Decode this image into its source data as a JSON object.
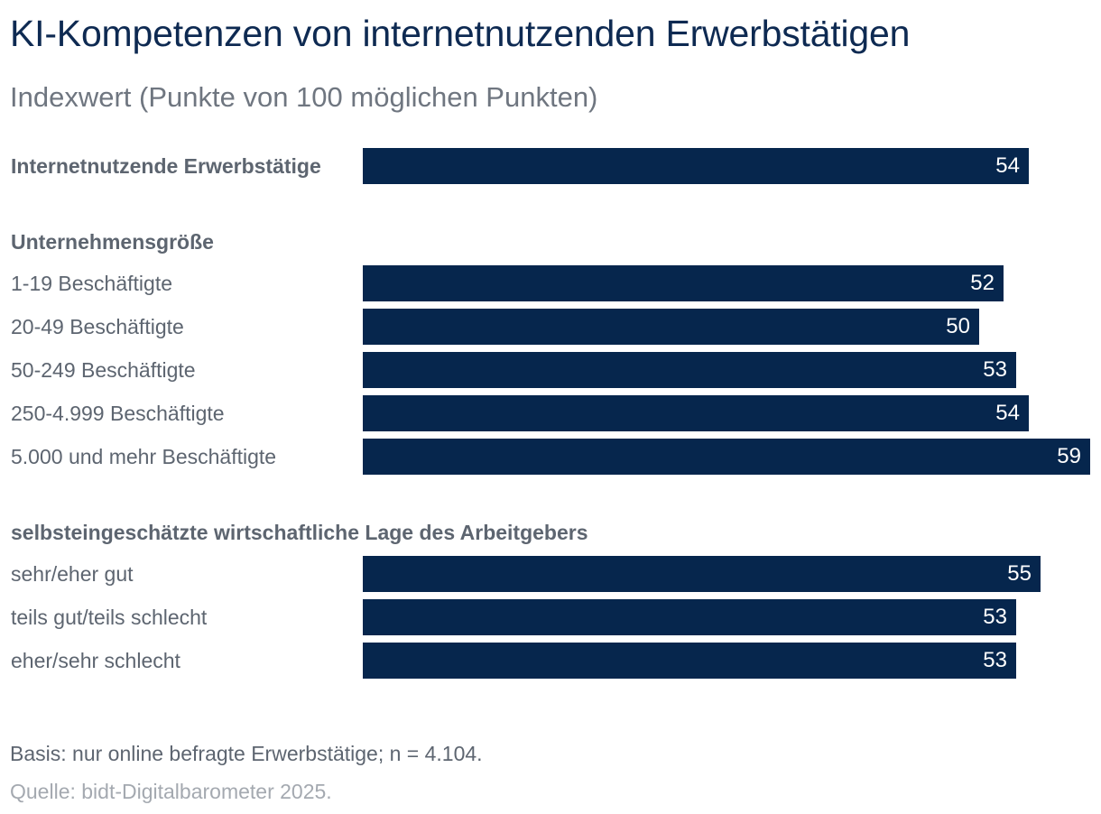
{
  "chart_data": {
    "type": "bar",
    "orientation": "horizontal",
    "title": "KI-Kompetenzen von internetnutzenden Erwerbstätigen",
    "subtitle": "Indexwert (Punkte von 100 möglichen Punkten)",
    "xlim": [
      0,
      59
    ],
    "bar_color": "#06264d",
    "groups": [
      {
        "header": "",
        "rows": [
          {
            "label": "Internetnutzende Erwerbstätige",
            "value": 54,
            "emphasis": true
          }
        ]
      },
      {
        "header": "Unternehmensgröße",
        "rows": [
          {
            "label": "1-19 Beschäftigte",
            "value": 52
          },
          {
            "label": "20-49 Beschäftigte",
            "value": 50
          },
          {
            "label": "50-249 Beschäftigte",
            "value": 53
          },
          {
            "label": "250-4.999 Beschäftigte",
            "value": 54
          },
          {
            "label": "5.000 und mehr Beschäftigte",
            "value": 59
          }
        ]
      },
      {
        "header": "selbsteingeschätzte wirtschaftliche Lage des Arbeitgebers",
        "rows": [
          {
            "label": "sehr/eher gut",
            "value": 55
          },
          {
            "label": "teils gut/teils schlecht",
            "value": 53
          },
          {
            "label": "eher/sehr schlecht",
            "value": 53
          }
        ]
      }
    ]
  },
  "notes": {
    "basis": "Basis: nur online befragte Erwerbstätige; n = 4.104.",
    "source": "Quelle: bidt-Digitalbarometer 2025."
  }
}
